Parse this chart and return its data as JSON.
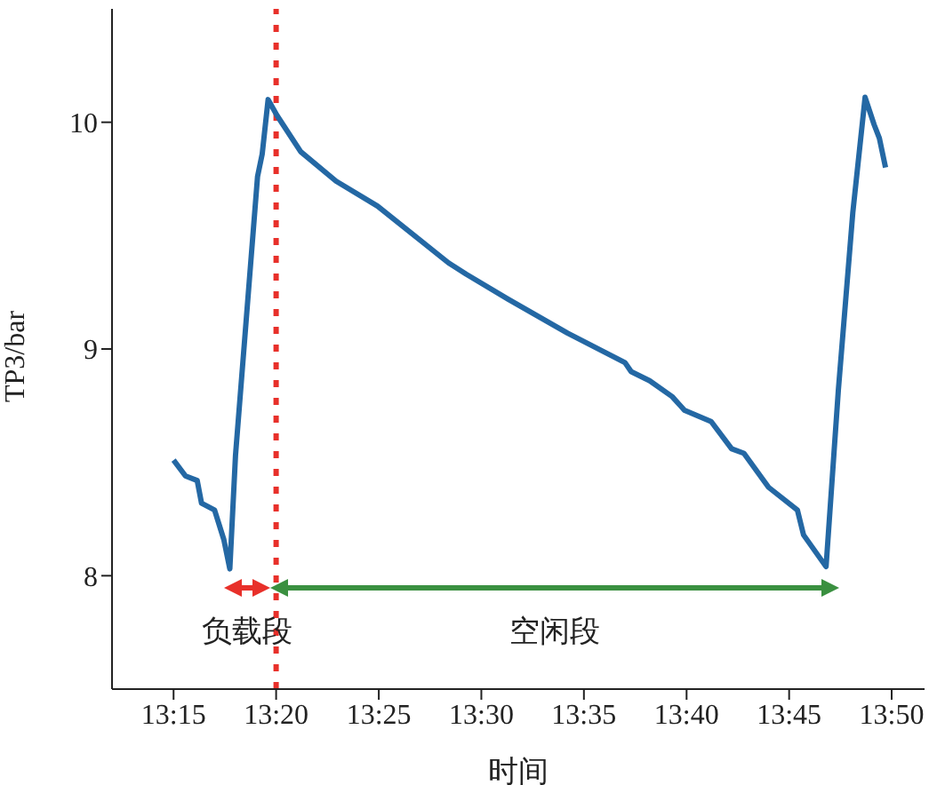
{
  "chart_data": {
    "type": "line",
    "xlabel": "时间",
    "ylabel": "TP3/bar",
    "x": [
      13.25,
      13.2597,
      13.2692,
      13.2727,
      13.2833,
      13.2908,
      13.2957,
      13.3003,
      13.3182,
      13.322,
      13.3268,
      13.334,
      13.3533,
      13.382,
      13.4157,
      13.4733,
      13.4877,
      13.5217,
      13.57,
      13.6167,
      13.6217,
      13.6367,
      13.655,
      13.665,
      13.6867,
      13.7033,
      13.7133,
      13.7333,
      13.7567,
      13.7617,
      13.78,
      13.79,
      13.8017,
      13.8117,
      13.819,
      13.8233,
      13.8283
    ],
    "series": [
      {
        "color": "#2468a4",
        "values": [
          8.51,
          8.44,
          8.42,
          8.32,
          8.29,
          8.16,
          8.03,
          8.53,
          9.76,
          9.86,
          10.1,
          10.03,
          9.87,
          9.74,
          9.63,
          9.38,
          9.33,
          9.22,
          9.07,
          8.94,
          8.9,
          8.86,
          8.79,
          8.73,
          8.68,
          8.56,
          8.54,
          8.39,
          8.29,
          8.18,
          8.04,
          8.82,
          9.6,
          10.11,
          9.99,
          9.93,
          9.8
        ]
      }
    ],
    "xlim": [
      13.2,
      13.86
    ],
    "xticks": [
      {
        "value": 13.25,
        "label": "13:15"
      },
      {
        "value": 13.3333,
        "label": "13:20"
      },
      {
        "value": 13.4167,
        "label": "13:25"
      },
      {
        "value": 13.5,
        "label": "13:30"
      },
      {
        "value": 13.5833,
        "label": "13:35"
      },
      {
        "value": 13.6667,
        "label": "13:40"
      },
      {
        "value": 13.75,
        "label": "13:45"
      },
      {
        "value": 13.8333,
        "label": "13:50"
      }
    ],
    "ylim": [
      7.5,
      10.5
    ],
    "yticks": [
      8,
      9,
      10
    ],
    "grid": false,
    "legend": false,
    "marker": "none",
    "line_style": "solid",
    "ref_lines": [
      {
        "axis": "x",
        "value": 13.3333,
        "label": null,
        "color": "#e8302a",
        "line_style": "dotted"
      }
    ],
    "annotations": [
      "负载段",
      "空闲段"
    ]
  }
}
